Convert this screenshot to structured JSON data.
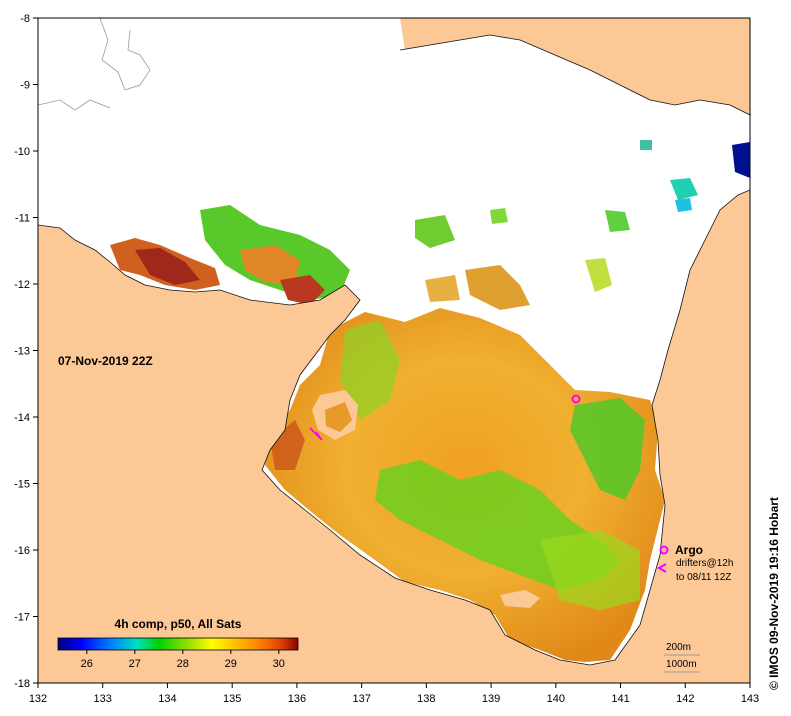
{
  "map": {
    "timestamp": "07-Nov-2019 22Z",
    "credit": "© IMOS 09-Nov-2019 19:16 Hobart",
    "x_ticks": [
      "132",
      "133",
      "134",
      "135",
      "136",
      "137",
      "138",
      "139",
      "140",
      "141",
      "142",
      "143"
    ],
    "y_ticks": [
      "-8",
      "-9",
      "-10",
      "-11",
      "-12",
      "-13",
      "-14",
      "-15",
      "-16",
      "-17",
      "-18"
    ],
    "colorbar": {
      "title": "4h comp, p50, All Sats",
      "ticks": [
        "26",
        "27",
        "28",
        "29",
        "30"
      ],
      "range": [
        25.4,
        30.4
      ],
      "colors": [
        "#00007f",
        "#0000ff",
        "#0080ff",
        "#00e0c0",
        "#00d000",
        "#a0e000",
        "#ffff00",
        "#ffc000",
        "#ff8000",
        "#e04000",
        "#8b0000"
      ]
    },
    "legend": {
      "argo": "Argo",
      "drifters_line1": "drifters@12h",
      "drifters_line2": "to 08/11 12Z",
      "contour_200": "200m",
      "contour_1000": "1000m"
    },
    "colors": {
      "land": "#fcc896",
      "cloud": "#ffffff",
      "marker": "#ff00ff"
    }
  }
}
